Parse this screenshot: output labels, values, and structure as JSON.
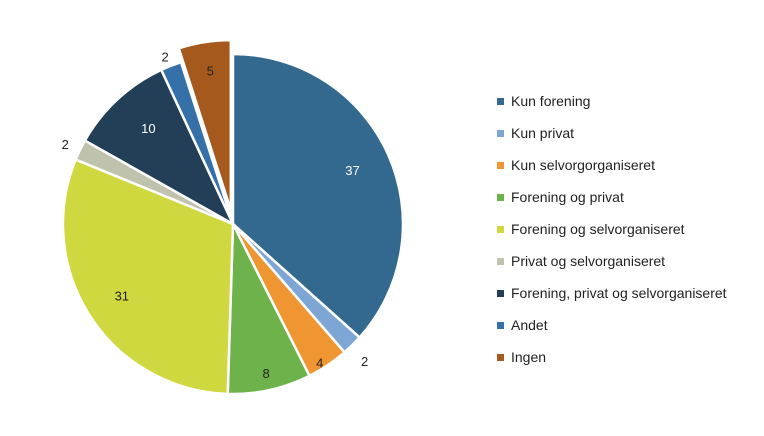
{
  "chart_data": {
    "type": "pie",
    "title": "",
    "categories": [
      "Kun forening",
      "Kun privat",
      "Kun selvorgorganiseret",
      "Forening og privat",
      "Forening og selvorganiseret",
      "Privat og selvorganiseret",
      "Forening, privat og selvorganiseret",
      "Andet",
      "Ingen"
    ],
    "values": [
      37,
      2,
      4,
      8,
      31,
      2,
      10,
      2,
      5
    ],
    "data_labels": [
      "37",
      "2",
      "4",
      "8",
      "31",
      "2",
      "10",
      "2",
      "5"
    ],
    "colors": [
      "#34698f",
      "#7ea6d4",
      "#ef9532",
      "#6db24a",
      "#cfd83f",
      "#bfc2ad",
      "#233f58",
      "#3670a8",
      "#a5591d"
    ],
    "label_colors": [
      "#ffffff",
      "#222222",
      "#222222",
      "#222222",
      "#222222",
      "#222222",
      "#ffffff",
      "#222222",
      "#222222"
    ],
    "exploded": [
      "Ingen"
    ],
    "legend_position": "right"
  }
}
